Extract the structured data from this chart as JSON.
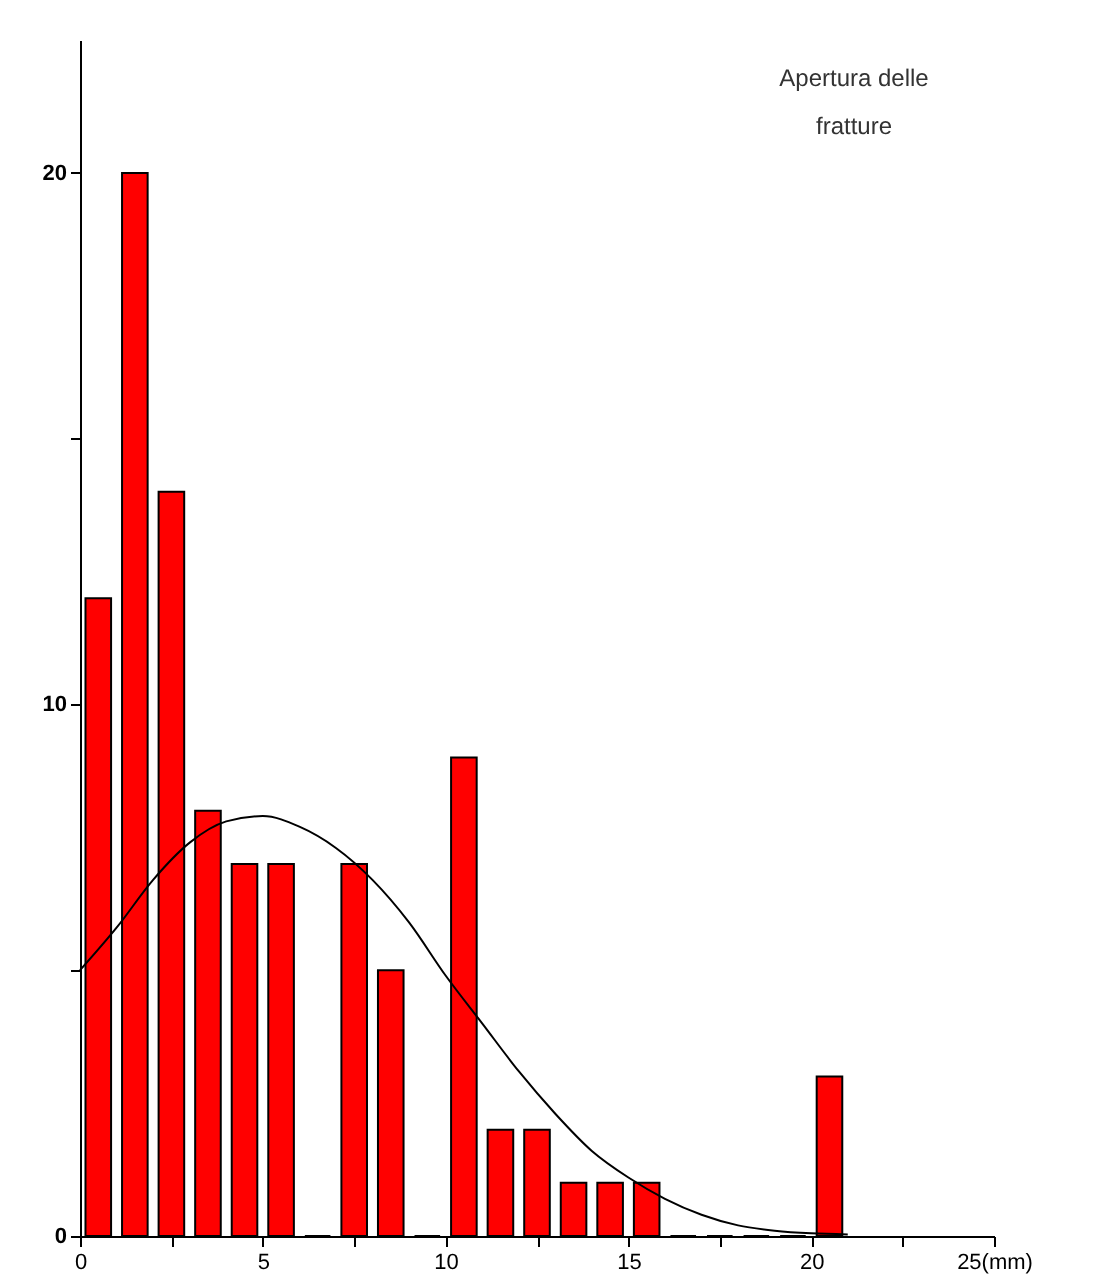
{
  "chart_data": {
    "type": "histogram",
    "annotations": [
      "Apertura  delle\nfratture"
    ],
    "series": [
      {
        "color": "#ff0000",
        "bins": [
          0,
          1,
          2,
          3,
          4,
          5,
          6,
          7,
          8,
          9,
          10,
          11,
          12,
          13,
          14,
          15,
          16,
          17,
          18,
          19,
          20,
          21
        ],
        "values": [
          12,
          20,
          14,
          8,
          7,
          7,
          0,
          7,
          5,
          0,
          9,
          2,
          2,
          1,
          1,
          1,
          0,
          0,
          0,
          0,
          3
        ]
      },
      {
        "type": "line",
        "color": "#000000",
        "x": [
          0,
          1,
          2,
          3,
          4,
          5,
          6,
          7,
          8,
          9,
          10,
          11,
          12,
          13,
          14,
          15,
          16,
          17,
          18,
          19,
          20,
          21
        ],
        "values": [
          5.0,
          5.8,
          6.7,
          7.4,
          7.8,
          7.9,
          7.7,
          7.3,
          6.7,
          5.9,
          4.9,
          4.0,
          3.1,
          2.3,
          1.6,
          1.1,
          0.7,
          0.4,
          0.2,
          0.1,
          0.05,
          0.03
        ]
      }
    ],
    "xlim": [
      0,
      25
    ],
    "ylim": [
      0,
      22.5
    ],
    "xticks": [
      0,
      {
        "value": 2.5,
        "label": null
      },
      5,
      {
        "value": 7.5,
        "label": null
      },
      10,
      {
        "value": 12.5,
        "label": null
      },
      15,
      {
        "value": 17.5,
        "label": null
      },
      20,
      {
        "value": 22.5,
        "label": null
      },
      {
        "value": 25,
        "label": "25(mm)"
      }
    ],
    "yticks": [
      0,
      {
        "value": 5,
        "label": null
      },
      10,
      {
        "value": 15,
        "label": null
      },
      20
    ],
    "grid": false
  }
}
